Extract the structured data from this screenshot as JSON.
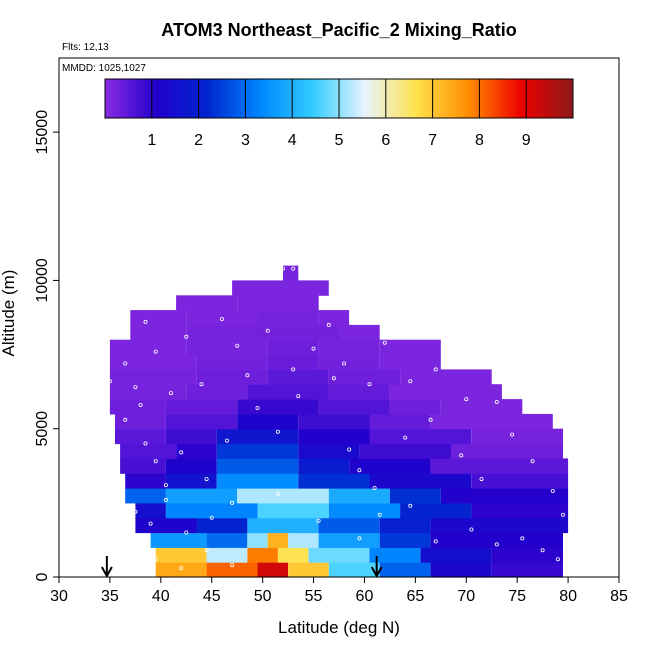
{
  "chart_data": {
    "type": "heatmap",
    "title": "ATOM3 Northeast_Pacific_2 Mixing_Ratio",
    "info_lines": [
      "Flts: 12,13",
      "MMDD: 1025,1027"
    ],
    "xlabel": "Latitude (deg N)",
    "ylabel": "Altitude (m)",
    "xlim": [
      30,
      85
    ],
    "ylim": [
      0,
      17500
    ],
    "x_ticks": [
      30,
      35,
      40,
      45,
      50,
      55,
      60,
      65,
      70,
      75,
      80,
      85
    ],
    "y_ticks": [
      0,
      5000,
      10000,
      15000
    ],
    "grid": false,
    "colorbar": {
      "placement": "top-inside",
      "range": [
        0,
        10
      ],
      "ticks": [
        1,
        2,
        3,
        4,
        5,
        6,
        7,
        8,
        9
      ],
      "colors": [
        "#8a2be2",
        "#2200cc",
        "#0028d0",
        "#0088ff",
        "#33ccff",
        "#e8f4ff",
        "#ffe14a",
        "#ff8c00",
        "#ee0000",
        "#8b1a1a"
      ]
    },
    "profile_marker_latitudes": [
      34.7,
      61.2
    ],
    "row_altitudes": [
      250,
      750,
      1250,
      1750,
      2250,
      2750,
      3250,
      3750,
      4250,
      4750,
      5250,
      5750,
      6250,
      6750,
      7250,
      7750,
      8250,
      8750,
      9250,
      9750,
      10250
    ],
    "row_segments": [
      [
        [
          39.5,
          44.5,
          7.4
        ],
        [
          44.5,
          49.5,
          8.1
        ],
        [
          49.5,
          52.5,
          9.2
        ],
        [
          52.5,
          56.5,
          7.0
        ],
        [
          56.5,
          61.5,
          4.6
        ],
        [
          61.5,
          66.5,
          2.9
        ],
        [
          66.5,
          72.5,
          1.3
        ],
        [
          72.5,
          79.5,
          0.9
        ]
      ],
      [
        [
          39.5,
          44.5,
          7.0
        ],
        [
          44.5,
          48.5,
          5.3
        ],
        [
          48.5,
          51.5,
          7.9
        ],
        [
          51.5,
          54.5,
          6.6
        ],
        [
          54.5,
          60.5,
          4.8
        ],
        [
          60.5,
          65.5,
          3.3
        ],
        [
          65.5,
          72.5,
          1.5
        ],
        [
          72.5,
          79.5,
          1.0
        ]
      ],
      [
        [
          39.0,
          44.5,
          3.6
        ],
        [
          44.5,
          48.5,
          3.0
        ],
        [
          48.5,
          50.5,
          5.0
        ],
        [
          50.5,
          52.5,
          7.3
        ],
        [
          52.5,
          55.5,
          5.2
        ],
        [
          55.5,
          61.5,
          3.7
        ],
        [
          61.5,
          66.5,
          2.4
        ],
        [
          66.5,
          79.5,
          1.1
        ]
      ],
      [
        [
          37.5,
          43.5,
          1.2
        ],
        [
          43.5,
          48.5,
          2.1
        ],
        [
          48.5,
          55.5,
          4.0
        ],
        [
          55.5,
          61.5,
          2.8
        ],
        [
          61.5,
          66.5,
          2.0
        ],
        [
          66.5,
          80.0,
          1.3
        ]
      ],
      [
        [
          37.5,
          40.5,
          1.5
        ],
        [
          40.5,
          49.5,
          3.3
        ],
        [
          49.5,
          56.5,
          4.6
        ],
        [
          56.5,
          63.5,
          3.4
        ],
        [
          63.5,
          70.5,
          2.1
        ],
        [
          70.5,
          80.0,
          1.0
        ]
      ],
      [
        [
          36.5,
          40.5,
          2.9
        ],
        [
          40.5,
          47.5,
          3.7
        ],
        [
          47.5,
          56.5,
          5.2
        ],
        [
          56.5,
          62.5,
          3.9
        ],
        [
          62.5,
          67.5,
          2.3
        ],
        [
          67.5,
          80.0,
          1.1
        ]
      ],
      [
        [
          36.5,
          40.5,
          1.0
        ],
        [
          40.5,
          45.5,
          1.6
        ],
        [
          45.5,
          53.5,
          3.4
        ],
        [
          53.5,
          60.5,
          2.3
        ],
        [
          60.5,
          70.5,
          1.3
        ],
        [
          70.5,
          80.0,
          0.7
        ]
      ],
      [
        [
          36.0,
          40.5,
          0.7
        ],
        [
          40.5,
          45.5,
          1.2
        ],
        [
          45.5,
          53.5,
          2.8
        ],
        [
          53.5,
          58.5,
          1.9
        ],
        [
          58.5,
          66.5,
          1.2
        ],
        [
          66.5,
          80.0,
          0.5
        ]
      ],
      [
        [
          36.0,
          41.5,
          0.6
        ],
        [
          41.5,
          45.5,
          1.0
        ],
        [
          45.5,
          53.5,
          2.4
        ],
        [
          53.5,
          59.5,
          1.4
        ],
        [
          59.5,
          68.5,
          0.8
        ],
        [
          68.5,
          79.5,
          0.3
        ]
      ],
      [
        [
          35.5,
          40.5,
          0.5
        ],
        [
          40.5,
          45.5,
          0.8
        ],
        [
          45.5,
          53.5,
          1.7
        ],
        [
          53.5,
          60.5,
          1.1
        ],
        [
          60.5,
          70.5,
          0.6
        ],
        [
          70.5,
          79.5,
          0.2
        ]
      ],
      [
        [
          35.5,
          40.5,
          0.3
        ],
        [
          40.5,
          47.5,
          0.6
        ],
        [
          47.5,
          53.5,
          1.2
        ],
        [
          53.5,
          60.5,
          0.8
        ],
        [
          60.5,
          66.5,
          0.4
        ],
        [
          66.5,
          78.5,
          0.15
        ]
      ],
      [
        [
          35.0,
          40.5,
          0.3
        ],
        [
          40.5,
          47.5,
          0.4
        ],
        [
          47.5,
          55.5,
          0.9
        ],
        [
          55.5,
          62.5,
          0.6
        ],
        [
          62.5,
          67.5,
          0.3
        ],
        [
          67.5,
          75.5,
          0.15
        ]
      ],
      [
        [
          35.0,
          42.5,
          0.2
        ],
        [
          42.5,
          48.5,
          0.3
        ],
        [
          48.5,
          56.5,
          0.6
        ],
        [
          56.5,
          62.5,
          0.4
        ],
        [
          62.5,
          73.5,
          0.15
        ]
      ],
      [
        [
          35.0,
          43.5,
          0.2
        ],
        [
          43.5,
          50.5,
          0.3
        ],
        [
          50.5,
          56.5,
          0.5
        ],
        [
          56.5,
          63.5,
          0.3
        ],
        [
          63.5,
          72.5,
          0.15
        ]
      ],
      [
        [
          35.0,
          43.5,
          0.15
        ],
        [
          43.5,
          50.5,
          0.25
        ],
        [
          50.5,
          55.5,
          0.35
        ],
        [
          55.5,
          61.5,
          0.25
        ],
        [
          61.5,
          67.5,
          0.15
        ]
      ],
      [
        [
          35.0,
          42.5,
          0.15
        ],
        [
          42.5,
          50.5,
          0.2
        ],
        [
          50.5,
          55.5,
          0.3
        ],
        [
          55.5,
          61.5,
          0.2
        ],
        [
          61.5,
          67.5,
          0.15
        ]
      ],
      [
        [
          37.0,
          42.5,
          0.15
        ],
        [
          42.5,
          49.5,
          0.2
        ],
        [
          49.5,
          57.5,
          0.25
        ],
        [
          57.5,
          61.5,
          0.15
        ]
      ],
      [
        [
          37.0,
          42.5,
          0.15
        ],
        [
          42.5,
          49.5,
          0.15
        ],
        [
          49.5,
          55.5,
          0.2
        ],
        [
          55.5,
          58.5,
          0.15
        ]
      ],
      [
        [
          41.5,
          47.5,
          0.15
        ],
        [
          47.5,
          55.5,
          0.15
        ]
      ],
      [
        [
          47.0,
          56.5,
          0.15
        ]
      ],
      [
        [
          52.0,
          53.5,
          0.2
        ]
      ]
    ],
    "sample_points": [
      [
        36.5,
        7200
      ],
      [
        37.5,
        6400
      ],
      [
        38.0,
        5800
      ],
      [
        38.5,
        8600
      ],
      [
        39.5,
        7600
      ],
      [
        41.0,
        6200
      ],
      [
        42.5,
        8100
      ],
      [
        44.0,
        6500
      ],
      [
        46.0,
        8700
      ],
      [
        47.5,
        7800
      ],
      [
        48.5,
        6800
      ],
      [
        50.5,
        8300
      ],
      [
        53.0,
        7000
      ],
      [
        55.0,
        7700
      ],
      [
        56.5,
        8500
      ],
      [
        58.0,
        7200
      ],
      [
        60.5,
        6500
      ],
      [
        62.0,
        7900
      ],
      [
        64.5,
        6600
      ],
      [
        67.0,
        7000
      ],
      [
        70.0,
        6000
      ],
      [
        73.0,
        5900
      ],
      [
        77.0,
        5600
      ],
      [
        79.0,
        5300
      ],
      [
        36.5,
        5300
      ],
      [
        38.5,
        4500
      ],
      [
        39.5,
        3900
      ],
      [
        40.5,
        3100
      ],
      [
        42.0,
        4200
      ],
      [
        44.5,
        3300
      ],
      [
        46.5,
        4600
      ],
      [
        49.5,
        5700
      ],
      [
        51.5,
        4900
      ],
      [
        53.5,
        6100
      ],
      [
        58.5,
        4300
      ],
      [
        59.5,
        3600
      ],
      [
        61.0,
        3000
      ],
      [
        64.0,
        4700
      ],
      [
        66.5,
        5300
      ],
      [
        69.5,
        4100
      ],
      [
        71.5,
        3300
      ],
      [
        74.5,
        4800
      ],
      [
        76.5,
        3900
      ],
      [
        78.5,
        2900
      ],
      [
        79.5,
        2100
      ],
      [
        37.5,
        2200
      ],
      [
        39.0,
        1800
      ],
      [
        40.5,
        2600
      ],
      [
        42.5,
        1500
      ],
      [
        45.0,
        2000
      ],
      [
        47.0,
        2500
      ],
      [
        51.5,
        2800
      ],
      [
        55.5,
        1900
      ],
      [
        59.5,
        1300
      ],
      [
        61.5,
        2100
      ],
      [
        64.5,
        2400
      ],
      [
        67.0,
        1200
      ],
      [
        70.5,
        1600
      ],
      [
        73.0,
        1100
      ],
      [
        75.5,
        1300
      ],
      [
        77.5,
        900
      ],
      [
        79.0,
        600
      ],
      [
        39.5,
        600
      ],
      [
        42.0,
        300
      ],
      [
        44.5,
        900
      ],
      [
        47.0,
        400
      ],
      [
        52.0,
        10400
      ],
      [
        53.0,
        10400
      ],
      [
        57.0,
        6700
      ],
      [
        35.0,
        6600
      ]
    ]
  }
}
